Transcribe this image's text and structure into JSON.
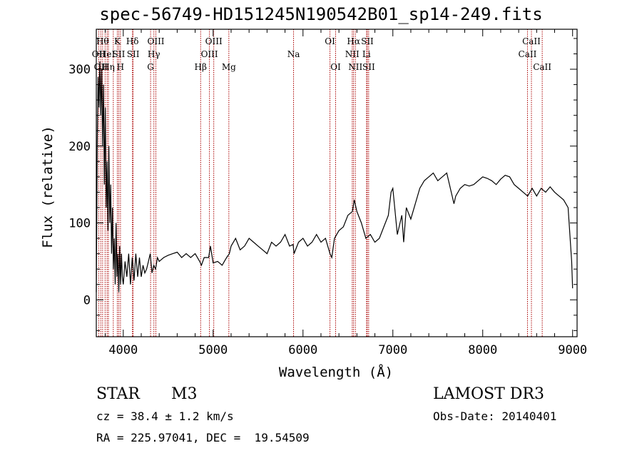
{
  "chart_data": {
    "type": "line",
    "title": "spec-56749-HD151245N190542B01_sp14-249.fits",
    "xlabel": "Wavelength (Å)",
    "ylabel": "Flux (relative)",
    "xlim": [
      3700,
      9050
    ],
    "ylim": [
      -48,
      352
    ],
    "xticks": [
      4000,
      5000,
      6000,
      7000,
      8000,
      9000
    ],
    "yticks": [
      0,
      100,
      200,
      300
    ],
    "grid": false,
    "series": [
      {
        "color": "#000000",
        "x": [
          3700,
          3710,
          3720,
          3730,
          3740,
          3750,
          3760,
          3770,
          3780,
          3790,
          3800,
          3810,
          3820,
          3830,
          3840,
          3850,
          3860,
          3870,
          3880,
          3890,
          3900,
          3910,
          3920,
          3930,
          3940,
          3950,
          3960,
          3970,
          3980,
          3990,
          4000,
          4020,
          4040,
          4060,
          4080,
          4100,
          4120,
          4140,
          4160,
          4180,
          4200,
          4220,
          4240,
          4260,
          4280,
          4300,
          4320,
          4340,
          4360,
          4380,
          4400,
          4450,
          4500,
          4550,
          4600,
          4650,
          4700,
          4750,
          4800,
          4850,
          4870,
          4900,
          4950,
          4970,
          5000,
          5050,
          5100,
          5150,
          5180,
          5200,
          5250,
          5300,
          5350,
          5400,
          5450,
          5500,
          5550,
          5600,
          5650,
          5700,
          5750,
          5800,
          5850,
          5890,
          5900,
          5950,
          6000,
          6050,
          6100,
          6150,
          6200,
          6250,
          6300,
          6320,
          6350,
          6400,
          6450,
          6500,
          6550,
          6570,
          6600,
          6650,
          6700,
          6750,
          6800,
          6850,
          6900,
          6950,
          6980,
          7000,
          7050,
          7100,
          7120,
          7150,
          7200,
          7250,
          7300,
          7350,
          7400,
          7450,
          7500,
          7550,
          7600,
          7650,
          7680,
          7700,
          7750,
          7800,
          7850,
          7900,
          7950,
          8000,
          8050,
          8100,
          8150,
          8200,
          8250,
          8300,
          8350,
          8400,
          8450,
          8500,
          8550,
          8600,
          8650,
          8700,
          8750,
          8800,
          8850,
          8900,
          8950,
          8990,
          9000
        ],
        "y": [
          10,
          200,
          290,
          250,
          310,
          240,
          300,
          200,
          280,
          150,
          250,
          120,
          180,
          90,
          200,
          100,
          150,
          60,
          120,
          40,
          80,
          20,
          100,
          30,
          60,
          10,
          70,
          20,
          60,
          30,
          20,
          50,
          30,
          60,
          20,
          55,
          25,
          60,
          30,
          55,
          30,
          45,
          35,
          40,
          50,
          60,
          35,
          45,
          40,
          55,
          50,
          55,
          58,
          60,
          62,
          55,
          60,
          55,
          60,
          50,
          45,
          55,
          55,
          70,
          48,
          50,
          45,
          55,
          60,
          70,
          80,
          65,
          70,
          80,
          75,
          70,
          65,
          60,
          75,
          70,
          75,
          85,
          70,
          72,
          60,
          75,
          80,
          70,
          75,
          85,
          75,
          80,
          60,
          55,
          80,
          90,
          95,
          110,
          115,
          130,
          115,
          100,
          80,
          85,
          75,
          80,
          95,
          110,
          140,
          145,
          85,
          110,
          75,
          120,
          105,
          125,
          145,
          155,
          160,
          165,
          155,
          160,
          165,
          140,
          125,
          135,
          145,
          150,
          148,
          150,
          155,
          160,
          158,
          155,
          150,
          157,
          162,
          160,
          150,
          145,
          140,
          135,
          145,
          135,
          145,
          140,
          147,
          140,
          135,
          130,
          120,
          50,
          15
        ]
      }
    ],
    "line_color": "#aa0000",
    "lines": [
      {
        "x": 3727,
        "label": "OII",
        "row": 2
      },
      {
        "x": 3750,
        "label": "OII",
        "row": 3
      },
      {
        "x": 3770,
        "label": "Hθ",
        "row": 1
      },
      {
        "x": 3798,
        "label": "",
        "row": 0
      },
      {
        "x": 3820,
        "label": "HeI",
        "row": 2
      },
      {
        "x": 3835,
        "label": "Hη",
        "row": 3
      },
      {
        "x": 3889,
        "label": "",
        "row": 0
      },
      {
        "x": 3934,
        "label": "K",
        "row": 1
      },
      {
        "x": 3950,
        "label": "SII",
        "row": 2
      },
      {
        "x": 3969,
        "label": "H",
        "row": 3
      },
      {
        "x": 4102,
        "label": "Hδ",
        "row": 1
      },
      {
        "x": 4110,
        "label": "SII",
        "row": 2
      },
      {
        "x": 4304,
        "label": "G",
        "row": 3
      },
      {
        "x": 4341,
        "label": "Hγ",
        "row": 2
      },
      {
        "x": 4363,
        "label": "OIII",
        "row": 1
      },
      {
        "x": 4861,
        "label": "Hβ",
        "row": 3
      },
      {
        "x": 4959,
        "label": "OIII",
        "row": 2
      },
      {
        "x": 5007,
        "label": "OIII",
        "row": 1
      },
      {
        "x": 5175,
        "label": "Mg",
        "row": 3
      },
      {
        "x": 5895,
        "label": "Na",
        "row": 2
      },
      {
        "x": 6300,
        "label": "OI",
        "row": 1
      },
      {
        "x": 6363,
        "label": "OI",
        "row": 3
      },
      {
        "x": 6548,
        "label": "NII",
        "row": 2
      },
      {
        "x": 6563,
        "label": "Hα",
        "row": 1
      },
      {
        "x": 6583,
        "label": "NII",
        "row": 3
      },
      {
        "x": 6707,
        "label": "Li",
        "row": 2
      },
      {
        "x": 6716,
        "label": "SII",
        "row": 1
      },
      {
        "x": 6731,
        "label": "SII",
        "row": 3
      },
      {
        "x": 8498,
        "label": "CaII",
        "row": 2
      },
      {
        "x": 8542,
        "label": "CaII",
        "row": 1
      },
      {
        "x": 8662,
        "label": "CaII",
        "row": 3
      }
    ]
  },
  "info": {
    "object_class": "STAR",
    "subclass": "M3",
    "survey": "LAMOST DR3",
    "cz": "cz = 38.4 ± 1.2 km/s",
    "obs_date": "Obs-Date: 20140401",
    "coords": "RA = 225.97041, DEC =  19.54509"
  }
}
